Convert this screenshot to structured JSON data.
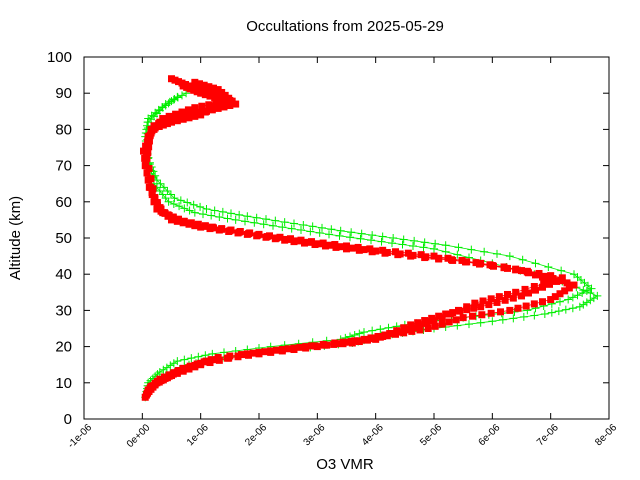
{
  "chart_data": {
    "type": "scatter",
    "title": "Occultations from 2025-05-29",
    "xlabel": "O3 VMR",
    "ylabel": "Altitude (km)",
    "xlim": [
      -1e-06,
      8e-06
    ],
    "ylim": [
      0,
      100
    ],
    "x_ticks": [
      "-1e-06",
      "0e+00",
      "1e-06",
      "2e-06",
      "3e-06",
      "4e-06",
      "5e-06",
      "6e-06",
      "7e-06",
      "8e-06"
    ],
    "x_tick_values": [
      -1e-06,
      0,
      1e-06,
      2e-06,
      3e-06,
      4e-06,
      5e-06,
      6e-06,
      7e-06,
      8e-06
    ],
    "y_ticks": [
      "0",
      "10",
      "20",
      "30",
      "40",
      "50",
      "60",
      "70",
      "80",
      "90",
      "100"
    ],
    "y_tick_values": [
      0,
      10,
      20,
      30,
      40,
      50,
      60,
      70,
      80,
      90,
      100
    ],
    "grid": false,
    "legend": "none",
    "series": [
      {
        "marker": "plus",
        "color": "#00ee00",
        "profiles": [
          {
            "x": [
              5e-08,
              1e-07,
              3e-07,
              6e-07,
              1.2e-06,
              2.2e-06,
              3.4e-06,
              3.8e-06,
              4.5e-06,
              5.5e-06,
              6.6e-06,
              7.3e-06,
              7.7e-06,
              7.4e-06,
              6.3e-06,
              5.2e-06,
              4.3e-06,
              3.4e-06,
              2.6e-06,
              1.8e-06,
              1.1e-06,
              5.5e-07,
              2.5e-07,
              1e-07,
              5e-08,
              1e-07,
              4e-07,
              7.5e-07
            ],
            "y": [
              6,
              10,
              13,
              16,
              18,
              20,
              22,
              24,
              26,
              28,
              30,
              33,
              36,
              40,
              45,
              48,
              50,
              52,
              54,
              56,
              58,
              61,
              66,
              72,
              78,
              83,
              87,
              90
            ]
          },
          {
            "x": [
              1e-07,
              4e-07,
              8e-07,
              1.4e-06,
              2.4e-06,
              3.6e-06,
              4.1e-06,
              5e-06,
              6e-06,
              6.9e-06,
              7.5e-06,
              7.8e-06,
              7.2e-06,
              6e-06,
              5e-06,
              4.1e-06,
              3.2e-06,
              2.4e-06,
              1.6e-06,
              9e-07,
              4.5e-07,
              2e-07,
              8e-08,
              1e-07,
              3.5e-07,
              6e-07
            ],
            "y": [
              8,
              12,
              15,
              17,
              19,
              21,
              23,
              25,
              27,
              29,
              31,
              34,
              38,
              43,
              47,
              49,
              51,
              53,
              55,
              57,
              60,
              65,
              74,
              82,
              86,
              89
            ]
          }
        ]
      },
      {
        "marker": "square",
        "color": "#ff0000",
        "profiles": [
          {
            "x": [
              5e-08,
              1.5e-07,
              5e-07,
              1e-06,
              1.8e-06,
              2.8e-06,
              3.6e-06,
              4.2e-06,
              4.9e-06,
              5.5e-06,
              6.3e-06,
              7e-06,
              7.4e-06,
              6.8e-06,
              5.8e-06,
              4.6e-06,
              3.5e-06,
              2.6e-06,
              1.8e-06,
              1e-06,
              5e-07,
              2e-07,
              5e-08,
              1e-07,
              3.5e-07,
              9e-07,
              1.5e-06,
              1.2e-06,
              8e-07,
              5e-07
            ],
            "y": [
              6,
              9,
              12,
              15,
              18,
              20,
              21,
              23,
              25,
              28,
              30,
              33,
              37,
              40,
              43,
              45,
              47,
              49,
              51,
              53,
              55,
              60,
              70,
              78,
              83,
              86,
              88,
              90,
              92,
              94
            ]
          },
          {
            "x": [
              1e-07,
              3e-07,
              7e-07,
              1.3e-06,
              2.3e-06,
              3.3e-06,
              4e-06,
              4.6e-06,
              5.2e-06,
              5.8e-06,
              6.5e-06,
              7.1e-06,
              6.5e-06,
              5.3e-06,
              4.2e-06,
              3.2e-06,
              2.3e-06,
              1.5e-06,
              8e-07,
              3.5e-07,
              1.2e-07,
              2e-08,
              2e-07,
              6e-07,
              1.1e-06,
              1.6e-06,
              1.3e-06,
              9e-07
            ],
            "y": [
              8,
              11,
              14,
              17,
              19,
              21,
              22,
              26,
              29,
              31,
              34,
              38,
              41,
              44,
              46,
              48,
              50,
              52,
              54,
              57,
              64,
              74,
              81,
              84,
              85,
              87,
              91,
              93
            ]
          },
          {
            "x": [
              8e-08,
              2.5e-07,
              6e-07,
              1.1e-06,
              2e-06,
              3e-06,
              3.8e-06,
              4.4e-06,
              5e-06,
              5.7e-06,
              6.4e-06,
              7.2e-06,
              6.2e-06,
              5e-06,
              3.9e-06,
              2.9e-06,
              2e-06,
              1.2e-06,
              6e-07,
              2.5e-07,
              8e-08,
              1.5e-07,
              5e-07,
              1e-06,
              1.4e-06,
              1e-06,
              7e-07
            ],
            "y": [
              7,
              10,
              13,
              16,
              18,
              20,
              22,
              24,
              27,
              32,
              35,
              39,
              42,
              45,
              47,
              49,
              51,
              53,
              55,
              58,
              72,
              80,
              82,
              84,
              88,
              90,
              92
            ]
          }
        ]
      }
    ]
  }
}
